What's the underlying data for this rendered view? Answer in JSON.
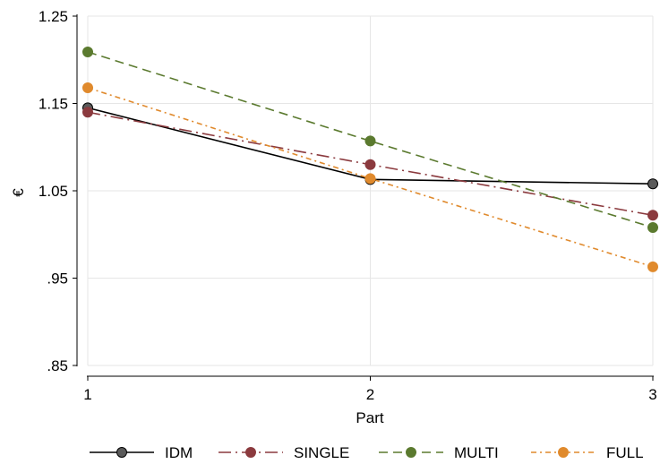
{
  "chart_data": {
    "type": "line",
    "x": [
      1,
      2,
      3
    ],
    "xlabel": "Part",
    "ylabel": "€",
    "xlim": [
      1,
      3
    ],
    "ylim": [
      0.85,
      1.25
    ],
    "xticks": [
      "1",
      "2",
      "3"
    ],
    "yticks": [
      {
        "value": 1.25,
        "label": "1.25"
      },
      {
        "value": 1.15,
        "label": "1.15"
      },
      {
        "value": 1.05,
        "label": "1.05"
      },
      {
        "value": 0.95,
        "label": ".95"
      },
      {
        "value": 0.85,
        "label": ".85"
      }
    ],
    "grid": true,
    "legend_position": "bottom",
    "series": [
      {
        "name": "IDM",
        "values": [
          1.145,
          1.063,
          1.058
        ],
        "color": "#000000",
        "marker_color": "#5a5a5a",
        "dash": "solid"
      },
      {
        "name": "SINGLE",
        "values": [
          1.14,
          1.08,
          1.022
        ],
        "color": "#8b3a3e",
        "marker_color": "#8b3a3e",
        "dash": "longdashdot"
      },
      {
        "name": "MULTI",
        "values": [
          1.209,
          1.107,
          1.008
        ],
        "color": "#5b7a2f",
        "marker_color": "#5b7a2f",
        "dash": "dash"
      },
      {
        "name": "FULL",
        "values": [
          1.168,
          1.064,
          0.963
        ],
        "color": "#e08a2d",
        "marker_color": "#e08a2d",
        "dash": "dashdot"
      }
    ]
  }
}
